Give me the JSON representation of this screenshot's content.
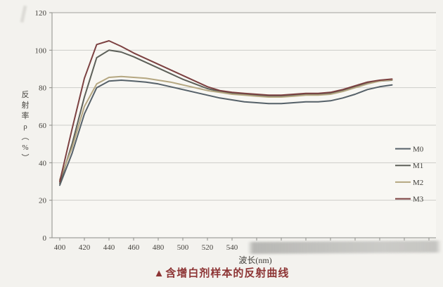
{
  "page": {
    "caption_marker": "▲",
    "caption_text": "含增白剂样本的反射曲线"
  },
  "chart_data": {
    "type": "line",
    "title": "",
    "xlabel": "波长(nm)",
    "ylabel": "反射率ρ(%)",
    "x_axis": {
      "min": 400,
      "max": 705,
      "tick_step": 20,
      "ticks": [
        400,
        420,
        440,
        460,
        480,
        500,
        520,
        540,
        560,
        580,
        600,
        620,
        640,
        660,
        680,
        700
      ],
      "visible_tick_labels": [
        "400",
        "420",
        "440",
        "460",
        "480",
        "500",
        "520",
        "540"
      ],
      "note_labels_after_540_hidden_by_watermark": true
    },
    "y_axis": {
      "min": 0,
      "max": 120,
      "ticks": [
        0,
        20,
        40,
        60,
        80,
        100,
        120
      ],
      "tick_labels": [
        "0",
        "20",
        "40",
        "60",
        "80",
        "100",
        "120"
      ]
    },
    "grid": "horizontal",
    "legend_position": "right-inside",
    "x": [
      400,
      410,
      420,
      430,
      440,
      450,
      460,
      470,
      480,
      490,
      500,
      510,
      520,
      530,
      540,
      550,
      560,
      570,
      580,
      590,
      600,
      610,
      620,
      630,
      640,
      650,
      660,
      670
    ],
    "series": [
      {
        "name": "M0",
        "color": "#566169",
        "values": [
          28,
          45,
          66,
          80,
          83.5,
          84,
          83.5,
          83,
          82,
          80.5,
          79,
          77.5,
          76,
          74.5,
          73.5,
          72.5,
          72,
          71.5,
          71.5,
          72,
          72.5,
          72.5,
          73,
          74.5,
          76.5,
          79,
          80.5,
          81.5
        ]
      },
      {
        "name": "M1",
        "color": "#5d6059",
        "values": [
          29,
          50,
          75,
          96,
          100,
          99,
          96.5,
          93.5,
          90.5,
          87.5,
          84.5,
          82,
          79.5,
          78,
          77,
          76.5,
          76,
          75.5,
          75.5,
          76,
          76.5,
          76.5,
          77,
          78.5,
          80.5,
          82.5,
          83.5,
          84
        ]
      },
      {
        "name": "M2",
        "color": "#b5a781",
        "values": [
          31,
          48,
          70,
          82,
          85.5,
          86,
          85.5,
          85,
          84,
          83,
          81.5,
          80,
          78.5,
          77.5,
          76.5,
          76,
          75.5,
          75,
          75,
          75.5,
          76,
          76,
          76.5,
          78,
          80,
          82,
          83.5,
          84.2
        ]
      },
      {
        "name": "M3",
        "color": "#7c4141",
        "values": [
          30,
          58,
          85,
          103,
          105,
          102,
          98.5,
          95.5,
          92.5,
          89.5,
          86.5,
          83.5,
          80.5,
          78.5,
          77.5,
          77,
          76.5,
          76,
          76,
          76.5,
          77,
          77,
          77.5,
          79,
          81,
          83,
          84,
          84.6
        ]
      }
    ],
    "colors": {
      "background": "#f3f2ee",
      "plot_background": "#f8f7f3",
      "gridline": "#cdcdc8",
      "top_gridline": "#a2a29c",
      "axis": "#8d8d88",
      "tick_text": "#46443f",
      "caption": "#8d3434"
    }
  }
}
